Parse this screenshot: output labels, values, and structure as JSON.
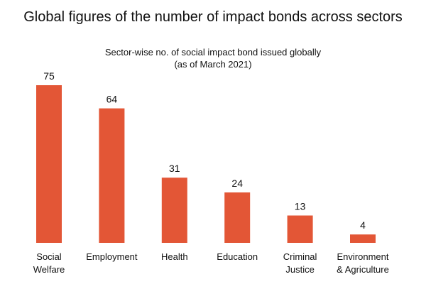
{
  "heading": "Global figures of the number of impact bonds across sectors",
  "colors": {
    "bar": "#E35636",
    "text": "#111111",
    "background": "#ffffff"
  },
  "chart_data": {
    "type": "bar",
    "title": "Sector-wise no. of social impact bond issued globally",
    "subtitle": "(as of March 2021)",
    "categories": [
      [
        "Social",
        "Welfare"
      ],
      [
        "Employment"
      ],
      [
        "Health"
      ],
      [
        "Education"
      ],
      [
        "Criminal",
        "Justice"
      ],
      [
        "Environment",
        "& Agriculture"
      ]
    ],
    "values": [
      75,
      64,
      31,
      24,
      13,
      4
    ],
    "data_labels": [
      "75",
      "64",
      "31",
      "24",
      "13",
      "4"
    ],
    "xlabel": "",
    "ylabel": "",
    "ylim": [
      0,
      75
    ],
    "grid": false,
    "legend": "none"
  }
}
